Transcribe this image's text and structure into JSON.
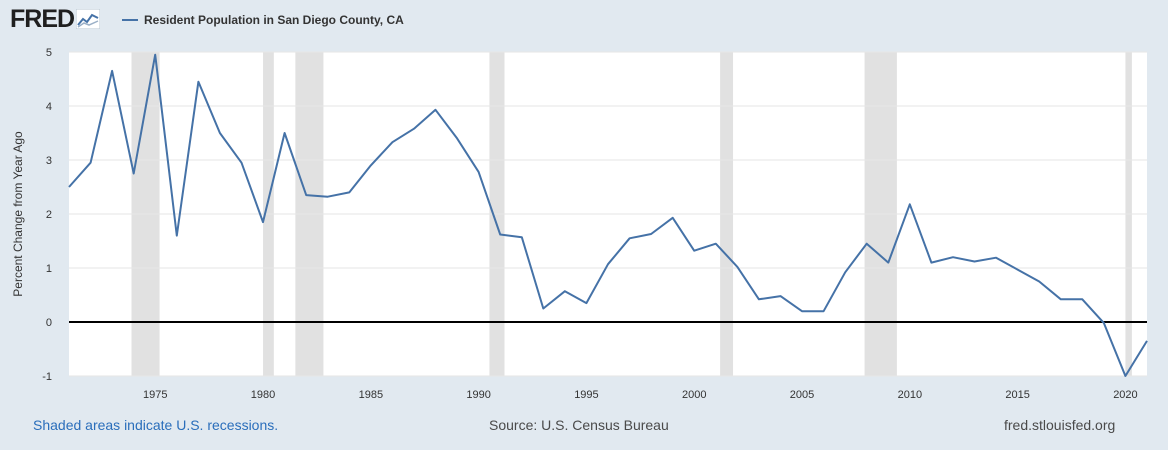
{
  "header": {
    "logo_text": "FRED",
    "logo_icon": "line-graph-icon"
  },
  "legend": {
    "label": "Resident Population in San Diego County, CA",
    "color": "#4572a7"
  },
  "footer": {
    "recession_note": "Shaded areas indicate U.S. recessions.",
    "source": "Source: U.S. Census Bureau",
    "site": "fred.stlouisfed.org"
  },
  "colors": {
    "background": "#e1e9f0",
    "plot_background": "#ffffff",
    "recession_shade": "#e1e1e1",
    "zero_line": "#000000",
    "grid": "#e6e6e6",
    "link": "#2a6ebb"
  },
  "chart_data": {
    "type": "line",
    "title": "",
    "xlabel": "",
    "ylabel": "Percent Change from Year Ago",
    "xlim": [
      1971,
      2021
    ],
    "ylim": [
      -1,
      5
    ],
    "x_ticks": [
      1975,
      1980,
      1985,
      1990,
      1995,
      2000,
      2005,
      2010,
      2015,
      2020
    ],
    "y_ticks": [
      -1,
      0,
      1,
      2,
      3,
      4,
      5
    ],
    "grid": true,
    "zero_line": true,
    "legend_position": "top-left",
    "recessions": [
      [
        1973.9,
        1975.2
      ],
      [
        1980.0,
        1980.5
      ],
      [
        1981.5,
        1982.8
      ],
      [
        1990.5,
        1991.2
      ],
      [
        2001.2,
        2001.8
      ],
      [
        2007.9,
        2009.4
      ],
      [
        2020.0,
        2020.3
      ]
    ],
    "series": [
      {
        "name": "Resident Population in San Diego County, CA",
        "color": "#4572a7",
        "x": [
          1971,
          1972,
          1973,
          1974,
          1975,
          1976,
          1977,
          1978,
          1979,
          1980,
          1981,
          1982,
          1983,
          1984,
          1985,
          1986,
          1987,
          1988,
          1989,
          1990,
          1991,
          1992,
          1993,
          1994,
          1995,
          1996,
          1997,
          1998,
          1999,
          2000,
          2001,
          2002,
          2003,
          2004,
          2005,
          2006,
          2007,
          2008,
          2009,
          2010,
          2011,
          2012,
          2013,
          2014,
          2015,
          2016,
          2017,
          2018,
          2019,
          2020,
          2021
        ],
        "y": [
          2.5,
          2.95,
          4.65,
          2.75,
          4.95,
          1.6,
          4.45,
          3.5,
          2.95,
          1.85,
          3.5,
          2.35,
          2.32,
          2.4,
          2.9,
          3.33,
          3.58,
          3.93,
          3.4,
          2.78,
          1.62,
          1.57,
          0.25,
          0.57,
          0.35,
          1.07,
          1.55,
          1.63,
          1.93,
          1.32,
          1.45,
          1.02,
          0.42,
          0.48,
          0.2,
          0.2,
          0.92,
          1.45,
          1.1,
          2.18,
          1.1,
          1.2,
          1.12,
          1.19,
          0.97,
          0.75,
          0.42,
          0.42,
          -0.02,
          -1.0,
          -0.35
        ]
      }
    ]
  }
}
